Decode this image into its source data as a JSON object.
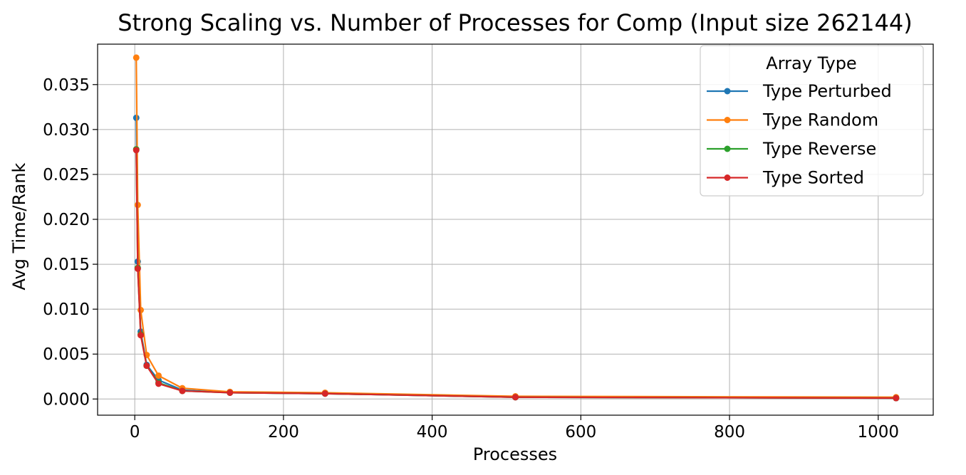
{
  "chart_data": {
    "type": "line",
    "title": "Strong Scaling vs. Number of Processes for Comp (Input size 262144)",
    "xlabel": "Processes",
    "ylabel": "Avg Time/Rank",
    "xlim": [
      -50,
      1074
    ],
    "ylim": [
      -0.0018,
      0.0395
    ],
    "xticks": [
      0,
      200,
      400,
      600,
      800,
      1000
    ],
    "xtick_labels": [
      "0",
      "200",
      "400",
      "600",
      "800",
      "1000"
    ],
    "yticks": [
      0.0,
      0.005,
      0.01,
      0.015,
      0.02,
      0.025,
      0.03,
      0.035
    ],
    "ytick_labels": [
      "0.000",
      "0.005",
      "0.010",
      "0.015",
      "0.020",
      "0.025",
      "0.030",
      "0.035"
    ],
    "grid": true,
    "legend_title": "Array Type",
    "legend_position": "top-right",
    "x": [
      2,
      4,
      8,
      16,
      32,
      64,
      128,
      256,
      512,
      1024
    ],
    "series": [
      {
        "name": "Type Perturbed",
        "color": "#1f77b4",
        "values": [
          0.0313,
          0.0153,
          0.0075,
          0.0038,
          0.0021,
          0.001,
          0.0007,
          0.0006,
          0.0002,
          0.0001
        ]
      },
      {
        "name": "Type Random",
        "color": "#ff7f0e",
        "values": [
          0.038,
          0.0216,
          0.0099,
          0.0049,
          0.0026,
          0.0012,
          0.0008,
          0.0007,
          0.0003,
          0.0002
        ]
      },
      {
        "name": "Type Reverse",
        "color": "#2ca02c",
        "values": [
          0.0278,
          0.0146,
          0.0072,
          0.0037,
          0.0018,
          0.0009,
          0.0007,
          0.0006,
          0.0002,
          0.0001
        ]
      },
      {
        "name": "Type Sorted",
        "color": "#d62728",
        "values": [
          0.0277,
          0.0145,
          0.0071,
          0.0037,
          0.0017,
          0.0009,
          0.0007,
          0.0006,
          0.0002,
          0.0001
        ]
      }
    ]
  }
}
